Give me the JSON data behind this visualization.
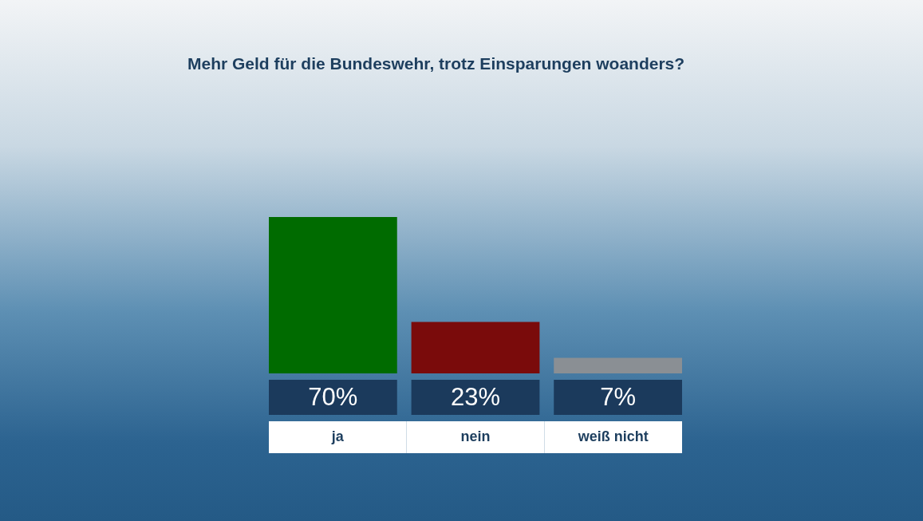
{
  "chart_data": {
    "type": "bar",
    "title": "Mehr Geld für die Bundeswehr, trotz Einsparungen woanders?",
    "categories": [
      "ja",
      "nein",
      "weiß nicht"
    ],
    "values": [
      70,
      23,
      7
    ],
    "colors": [
      "#006b00",
      "#7a0b0b",
      "#8a8f94"
    ],
    "value_labels": [
      "70%",
      "23%",
      "7%"
    ]
  }
}
